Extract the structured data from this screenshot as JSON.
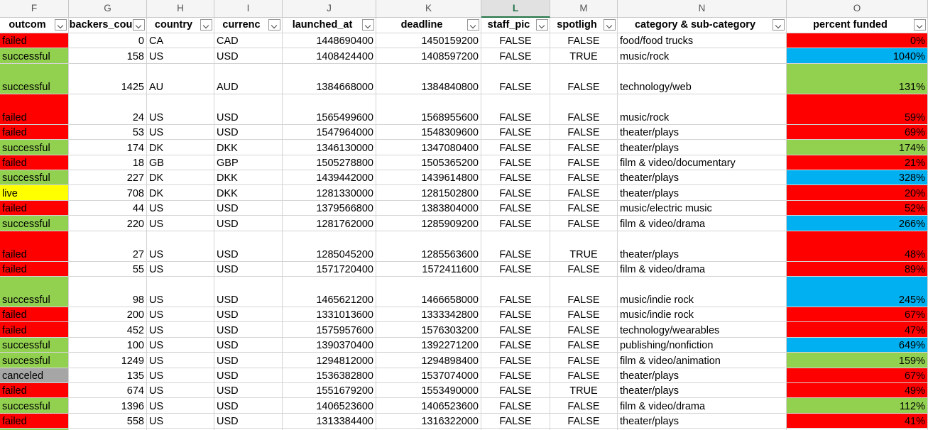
{
  "column_letters": [
    "F",
    "G",
    "H",
    "I",
    "J",
    "K",
    "L",
    "M",
    "N",
    "O"
  ],
  "selected_column": "L",
  "headers": [
    "outcom",
    "backers_cou",
    "country",
    "currenc",
    "launched_at",
    "deadline",
    "staff_pic",
    "spotligh",
    "category & sub-category",
    "percent funded"
  ],
  "outcome_colors": {
    "failed": "#ff0000",
    "successful": "#92d050",
    "live": "#ffff00",
    "canceled": "#a6a6a6"
  },
  "rows": [
    [
      "failed",
      "0",
      "CA",
      "CAD",
      "1448690400",
      "1450159200",
      "FALSE",
      "FALSE",
      "food/food trucks",
      "0%"
    ],
    [
      "successful",
      "158",
      "US",
      "USD",
      "1408424400",
      "1408597200",
      "FALSE",
      "TRUE",
      "music/rock",
      "1040%"
    ],
    [
      "successful",
      "1425",
      "AU",
      "AUD",
      "1384668000",
      "1384840800",
      "FALSE",
      "FALSE",
      "technology/web",
      "131%"
    ],
    [
      "failed",
      "24",
      "US",
      "USD",
      "1565499600",
      "1568955600",
      "FALSE",
      "FALSE",
      "music/rock",
      "59%"
    ],
    [
      "failed",
      "53",
      "US",
      "USD",
      "1547964000",
      "1548309600",
      "FALSE",
      "FALSE",
      "theater/plays",
      "69%"
    ],
    [
      "successful",
      "174",
      "DK",
      "DKK",
      "1346130000",
      "1347080400",
      "FALSE",
      "FALSE",
      "theater/plays",
      "174%"
    ],
    [
      "failed",
      "18",
      "GB",
      "GBP",
      "1505278800",
      "1505365200",
      "FALSE",
      "FALSE",
      "film & video/documentary",
      "21%"
    ],
    [
      "successful",
      "227",
      "DK",
      "DKK",
      "1439442000",
      "1439614800",
      "FALSE",
      "FALSE",
      "theater/plays",
      "328%"
    ],
    [
      "live",
      "708",
      "DK",
      "DKK",
      "1281330000",
      "1281502800",
      "FALSE",
      "FALSE",
      "theater/plays",
      "20%"
    ],
    [
      "failed",
      "44",
      "US",
      "USD",
      "1379566800",
      "1383804000",
      "FALSE",
      "FALSE",
      "music/electric music",
      "52%"
    ],
    [
      "successful",
      "220",
      "US",
      "USD",
      "1281762000",
      "1285909200",
      "FALSE",
      "FALSE",
      "film & video/drama",
      "266%"
    ],
    [
      "failed",
      "27",
      "US",
      "USD",
      "1285045200",
      "1285563600",
      "FALSE",
      "TRUE",
      "theater/plays",
      "48%"
    ],
    [
      "failed",
      "55",
      "US",
      "USD",
      "1571720400",
      "1572411600",
      "FALSE",
      "FALSE",
      "film & video/drama",
      "89%"
    ],
    [
      "successful",
      "98",
      "US",
      "USD",
      "1465621200",
      "1466658000",
      "FALSE",
      "FALSE",
      "music/indie rock",
      "245%"
    ],
    [
      "failed",
      "200",
      "US",
      "USD",
      "1331013600",
      "1333342800",
      "FALSE",
      "FALSE",
      "music/indie rock",
      "67%"
    ],
    [
      "failed",
      "452",
      "US",
      "USD",
      "1575957600",
      "1576303200",
      "FALSE",
      "FALSE",
      "technology/wearables",
      "47%"
    ],
    [
      "successful",
      "100",
      "US",
      "USD",
      "1390370400",
      "1392271200",
      "FALSE",
      "FALSE",
      "publishing/nonfiction",
      "649%"
    ],
    [
      "successful",
      "1249",
      "US",
      "USD",
      "1294812000",
      "1294898400",
      "FALSE",
      "FALSE",
      "film & video/animation",
      "159%"
    ],
    [
      "canceled",
      "135",
      "US",
      "USD",
      "1536382800",
      "1537074000",
      "FALSE",
      "FALSE",
      "theater/plays",
      "67%"
    ],
    [
      "failed",
      "674",
      "US",
      "USD",
      "1551679200",
      "1553490000",
      "FALSE",
      "TRUE",
      "theater/plays",
      "49%"
    ],
    [
      "successful",
      "1396",
      "US",
      "USD",
      "1406523600",
      "1406523600",
      "FALSE",
      "FALSE",
      "film & video/drama",
      "112%"
    ],
    [
      "failed",
      "558",
      "US",
      "USD",
      "1313384400",
      "1316322000",
      "FALSE",
      "FALSE",
      "theater/plays",
      "41%"
    ]
  ],
  "percent_colors": [
    "#ff0000",
    "#00b0f0",
    "#92d050",
    "#ff0000",
    "#ff0000",
    "#92d050",
    "#ff0000",
    "#00b0f0",
    "#ff0000",
    "#ff0000",
    "#00b0f0",
    "#ff0000",
    "#ff0000",
    "#00b0f0",
    "#ff0000",
    "#ff0000",
    "#00b0f0",
    "#92d050",
    "#ff0000",
    "#ff0000",
    "#92d050",
    "#ff0000"
  ]
}
